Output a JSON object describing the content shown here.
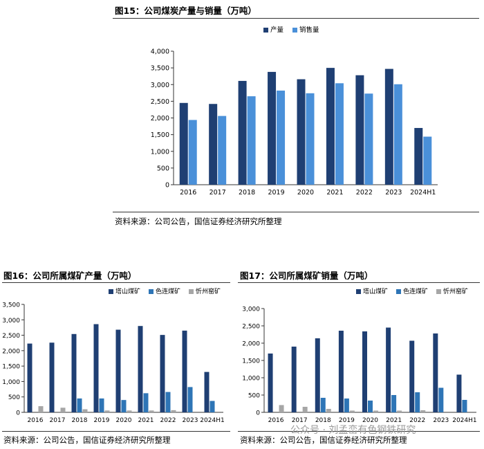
{
  "figures": [
    {
      "title": "图15：公司煤炭产量与销量（万吨）",
      "source": "资料来源：公司公告，国信证券经济研究所整理"
    },
    {
      "title": "图16：公司所属煤矿产量（万吨）",
      "source": "资料来源：公司公告，国信证券经济研究所整理"
    },
    {
      "title": "图17：公司所属煤矿销量（万吨）",
      "source": "资料来源：公司公告，国信证券经济研究所整理"
    }
  ],
  "watermark": "公众号 · 刘孟峦有色钢铁研究",
  "colors": {
    "dark_blue": "#1F3F73",
    "mid_blue": "#2E75B6",
    "light_blue": "#4A90D9",
    "gray": "#A6A6A6"
  },
  "chart_data": [
    {
      "type": "bar",
      "categories": [
        "2016",
        "2017",
        "2018",
        "2019",
        "2020",
        "2021",
        "2022",
        "2023",
        "2024H1"
      ],
      "series": [
        {
          "name": "产量",
          "color": "#1F3F73",
          "values": [
            2450,
            2420,
            3110,
            3380,
            3160,
            3500,
            3280,
            3470,
            1700
          ]
        },
        {
          "name": "销售量",
          "color": "#4A90D9",
          "values": [
            1940,
            2060,
            2650,
            2820,
            2740,
            3040,
            2730,
            3010,
            1440
          ]
        }
      ],
      "ylim": [
        0,
        4000
      ],
      "yticks": [
        0,
        500,
        1000,
        1500,
        2000,
        2500,
        3000,
        3500,
        4000
      ],
      "ytick_labels": [
        "0",
        "500",
        "1,000",
        "1,500",
        "2,000",
        "2,500",
        "3,000",
        "3,500",
        "4,000"
      ],
      "legend": "top-right",
      "grid": false
    },
    {
      "type": "bar",
      "categories": [
        "2016",
        "2017",
        "2018",
        "2019",
        "2020",
        "2021",
        "2022",
        "2023",
        "2024H1"
      ],
      "series": [
        {
          "name": "塔山煤矿",
          "color": "#1F3F73",
          "values": [
            2230,
            2260,
            2540,
            2860,
            2680,
            2800,
            2510,
            2650,
            1310
          ]
        },
        {
          "name": "色连煤矿",
          "color": "#2E75B6",
          "values": [
            0,
            0,
            450,
            450,
            400,
            620,
            660,
            820,
            370
          ]
        },
        {
          "name": "忻州窑矿",
          "color": "#A6A6A6",
          "values": [
            200,
            150,
            100,
            60,
            60,
            60,
            70,
            0,
            0
          ]
        }
      ],
      "ylim": [
        0,
        3500
      ],
      "yticks": [
        0,
        500,
        1000,
        1500,
        2000,
        2500,
        3000,
        3500
      ],
      "ytick_labels": [
        "0",
        "500",
        "1,000",
        "1,500",
        "2,000",
        "2,500",
        "3,000",
        "3,500"
      ],
      "legend": "top-right",
      "grid": false
    },
    {
      "type": "bar",
      "categories": [
        "2016",
        "2017",
        "2018",
        "2019",
        "2020",
        "2021",
        "2022",
        "2023",
        "2024H1"
      ],
      "series": [
        {
          "name": "塔山煤矿",
          "color": "#1F3F73",
          "values": [
            1700,
            1900,
            2140,
            2360,
            2340,
            2450,
            2070,
            2280,
            1090
          ]
        },
        {
          "name": "色连煤矿",
          "color": "#2E75B6",
          "values": [
            0,
            0,
            420,
            400,
            340,
            500,
            580,
            710,
            360
          ]
        },
        {
          "name": "忻州窑矿",
          "color": "#A6A6A6",
          "values": [
            210,
            160,
            100,
            50,
            50,
            50,
            60,
            0,
            0
          ]
        }
      ],
      "ylim": [
        0,
        3000
      ],
      "yticks": [
        0,
        500,
        1000,
        1500,
        2000,
        2500,
        3000
      ],
      "ytick_labels": [
        "0",
        "500",
        "1,000",
        "1,500",
        "2,000",
        "2,500",
        "3,000"
      ],
      "legend": "top-right",
      "grid": false
    }
  ]
}
